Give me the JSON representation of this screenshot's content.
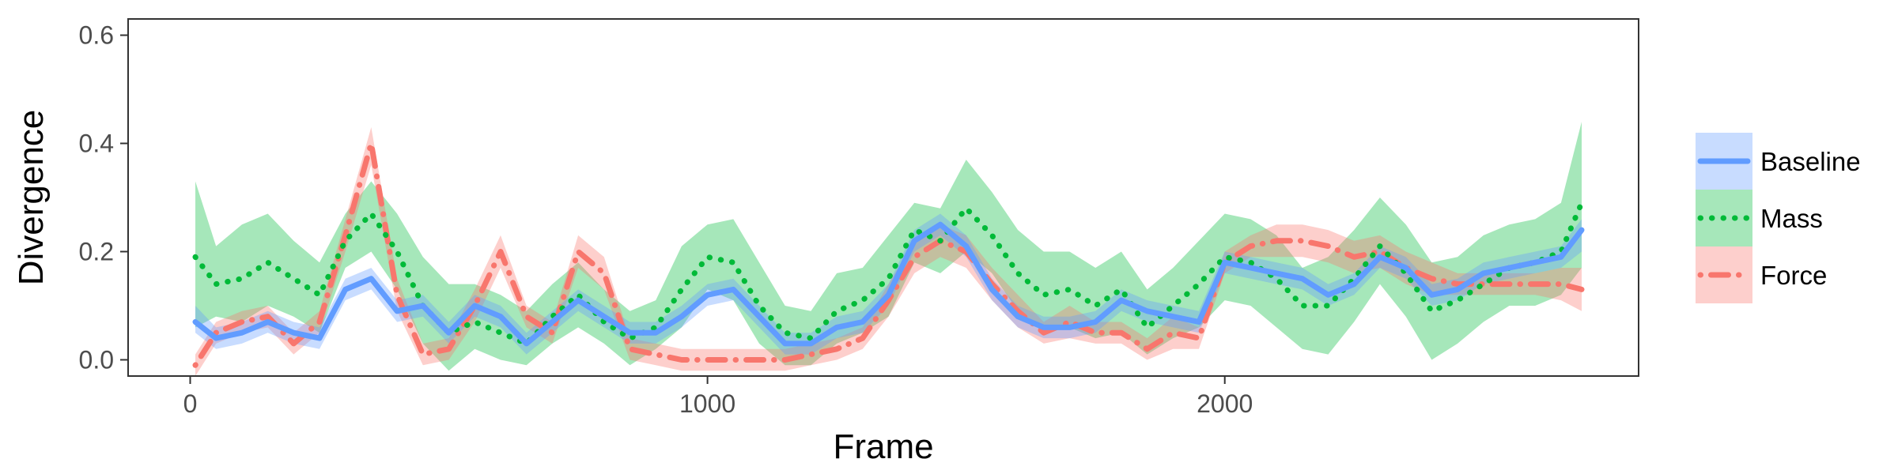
{
  "chart_data": {
    "type": "line",
    "title": "",
    "xlabel": "Frame",
    "ylabel": "Divergence",
    "xlim": [
      -120,
      2800
    ],
    "ylim": [
      -0.03,
      0.63
    ],
    "x_ticks": [
      0,
      1000,
      2000
    ],
    "x_tick_labels": [
      "0",
      "1000",
      "2000"
    ],
    "y_ticks": [
      0.0,
      0.2,
      0.4,
      0.6
    ],
    "y_tick_labels": [
      "0.0",
      "0.2",
      "0.4",
      "0.6"
    ],
    "grid": false,
    "legend_position": "right",
    "x": [
      10,
      50,
      100,
      150,
      200,
      250,
      300,
      350,
      400,
      450,
      500,
      550,
      600,
      650,
      700,
      750,
      800,
      850,
      900,
      950,
      1000,
      1050,
      1100,
      1150,
      1200,
      1250,
      1300,
      1350,
      1400,
      1450,
      1500,
      1550,
      1600,
      1650,
      1700,
      1750,
      1800,
      1850,
      1900,
      1950,
      2000,
      2050,
      2100,
      2150,
      2200,
      2250,
      2300,
      2350,
      2400,
      2450,
      2500,
      2550,
      2600,
      2650,
      2690
    ],
    "series": [
      {
        "name": "Baseline",
        "color": "#619cff",
        "line_style": "solid",
        "values": [
          0.07,
          0.04,
          0.05,
          0.07,
          0.05,
          0.04,
          0.13,
          0.15,
          0.09,
          0.1,
          0.05,
          0.1,
          0.08,
          0.03,
          0.07,
          0.11,
          0.08,
          0.05,
          0.05,
          0.08,
          0.12,
          0.13,
          0.08,
          0.03,
          0.03,
          0.06,
          0.07,
          0.12,
          0.22,
          0.25,
          0.21,
          0.13,
          0.08,
          0.06,
          0.06,
          0.07,
          0.11,
          0.09,
          0.08,
          0.07,
          0.18,
          0.17,
          0.16,
          0.15,
          0.12,
          0.14,
          0.19,
          0.17,
          0.12,
          0.13,
          0.16,
          0.17,
          0.18,
          0.19,
          0.24
        ],
        "lower": [
          0.05,
          0.02,
          0.03,
          0.05,
          0.03,
          0.02,
          0.11,
          0.13,
          0.07,
          0.08,
          0.03,
          0.08,
          0.06,
          0.01,
          0.05,
          0.09,
          0.06,
          0.03,
          0.03,
          0.06,
          0.1,
          0.11,
          0.06,
          0.01,
          0.01,
          0.04,
          0.05,
          0.1,
          0.2,
          0.23,
          0.19,
          0.11,
          0.06,
          0.04,
          0.04,
          0.05,
          0.09,
          0.07,
          0.06,
          0.05,
          0.16,
          0.15,
          0.14,
          0.13,
          0.1,
          0.12,
          0.17,
          0.15,
          0.1,
          0.11,
          0.14,
          0.15,
          0.16,
          0.17,
          0.2
        ],
        "upper": [
          0.1,
          0.06,
          0.07,
          0.09,
          0.07,
          0.06,
          0.15,
          0.17,
          0.11,
          0.12,
          0.07,
          0.12,
          0.1,
          0.05,
          0.09,
          0.13,
          0.1,
          0.07,
          0.07,
          0.1,
          0.14,
          0.15,
          0.1,
          0.05,
          0.05,
          0.08,
          0.09,
          0.14,
          0.24,
          0.27,
          0.23,
          0.15,
          0.1,
          0.08,
          0.08,
          0.09,
          0.13,
          0.11,
          0.1,
          0.09,
          0.2,
          0.19,
          0.18,
          0.17,
          0.14,
          0.16,
          0.21,
          0.19,
          0.14,
          0.15,
          0.18,
          0.19,
          0.2,
          0.21,
          0.26
        ]
      },
      {
        "name": "Mass",
        "color": "#00ba38",
        "line_style": "dotted",
        "values": [
          0.19,
          0.14,
          0.15,
          0.18,
          0.15,
          0.12,
          0.22,
          0.27,
          0.2,
          0.1,
          0.05,
          0.07,
          0.05,
          0.03,
          0.08,
          0.12,
          0.07,
          0.04,
          0.06,
          0.13,
          0.19,
          0.18,
          0.1,
          0.05,
          0.04,
          0.09,
          0.11,
          0.15,
          0.24,
          0.22,
          0.28,
          0.23,
          0.16,
          0.12,
          0.13,
          0.1,
          0.13,
          0.06,
          0.1,
          0.14,
          0.19,
          0.18,
          0.15,
          0.1,
          0.1,
          0.15,
          0.21,
          0.16,
          0.09,
          0.11,
          0.14,
          0.17,
          0.18,
          0.2,
          0.29
        ],
        "lower": [
          0.06,
          0.08,
          0.07,
          0.1,
          0.08,
          0.05,
          0.17,
          0.2,
          0.13,
          0.03,
          -0.02,
          0.02,
          0.0,
          -0.01,
          0.03,
          0.06,
          0.03,
          -0.01,
          0.02,
          0.06,
          0.13,
          0.11,
          0.03,
          -0.01,
          -0.01,
          0.03,
          0.05,
          0.08,
          0.18,
          0.16,
          0.2,
          0.16,
          0.09,
          0.05,
          0.06,
          0.04,
          0.05,
          0.01,
          0.04,
          0.06,
          0.11,
          0.1,
          0.06,
          0.02,
          0.01,
          0.07,
          0.14,
          0.08,
          0.0,
          0.03,
          0.07,
          0.1,
          0.1,
          0.12,
          0.17
        ],
        "upper": [
          0.33,
          0.21,
          0.25,
          0.27,
          0.22,
          0.18,
          0.27,
          0.33,
          0.27,
          0.19,
          0.14,
          0.14,
          0.12,
          0.09,
          0.14,
          0.18,
          0.13,
          0.09,
          0.11,
          0.21,
          0.25,
          0.26,
          0.18,
          0.1,
          0.09,
          0.16,
          0.17,
          0.23,
          0.29,
          0.28,
          0.37,
          0.31,
          0.24,
          0.2,
          0.2,
          0.17,
          0.2,
          0.13,
          0.17,
          0.22,
          0.27,
          0.26,
          0.23,
          0.17,
          0.19,
          0.24,
          0.3,
          0.25,
          0.18,
          0.19,
          0.23,
          0.25,
          0.26,
          0.29,
          0.44
        ]
      },
      {
        "name": "Force",
        "color": "#f8766d",
        "line_style": "dot-dash",
        "values": [
          -0.01,
          0.05,
          0.07,
          0.08,
          0.03,
          0.07,
          0.23,
          0.4,
          0.12,
          0.01,
          0.02,
          0.1,
          0.2,
          0.08,
          0.05,
          0.2,
          0.16,
          0.02,
          0.01,
          0.0,
          0.0,
          0.0,
          0.0,
          0.0,
          0.01,
          0.02,
          0.04,
          0.11,
          0.19,
          0.22,
          0.2,
          0.14,
          0.09,
          0.05,
          0.07,
          0.05,
          0.05,
          0.02,
          0.05,
          0.04,
          0.18,
          0.21,
          0.22,
          0.22,
          0.21,
          0.19,
          0.2,
          0.17,
          0.15,
          0.14,
          0.14,
          0.14,
          0.14,
          0.14,
          0.13
        ],
        "lower": [
          -0.03,
          0.03,
          0.05,
          0.06,
          0.01,
          0.05,
          0.2,
          0.36,
          0.09,
          -0.01,
          0.0,
          0.07,
          0.17,
          0.06,
          0.03,
          0.17,
          0.13,
          0.0,
          -0.01,
          -0.02,
          -0.02,
          -0.02,
          -0.02,
          -0.02,
          -0.01,
          0.0,
          0.02,
          0.08,
          0.16,
          0.19,
          0.17,
          0.11,
          0.06,
          0.03,
          0.04,
          0.03,
          0.03,
          0.0,
          0.02,
          0.02,
          0.16,
          0.19,
          0.19,
          0.19,
          0.18,
          0.16,
          0.17,
          0.14,
          0.12,
          0.12,
          0.12,
          0.12,
          0.12,
          0.11,
          0.09
        ],
        "upper": [
          0.01,
          0.07,
          0.09,
          0.1,
          0.05,
          0.09,
          0.26,
          0.43,
          0.15,
          0.03,
          0.04,
          0.13,
          0.23,
          0.1,
          0.07,
          0.23,
          0.19,
          0.04,
          0.03,
          0.02,
          0.02,
          0.02,
          0.02,
          0.02,
          0.03,
          0.04,
          0.06,
          0.14,
          0.22,
          0.25,
          0.23,
          0.17,
          0.12,
          0.07,
          0.1,
          0.07,
          0.07,
          0.04,
          0.08,
          0.06,
          0.2,
          0.23,
          0.25,
          0.25,
          0.24,
          0.22,
          0.23,
          0.2,
          0.18,
          0.16,
          0.16,
          0.16,
          0.16,
          0.17,
          0.17
        ]
      }
    ]
  }
}
